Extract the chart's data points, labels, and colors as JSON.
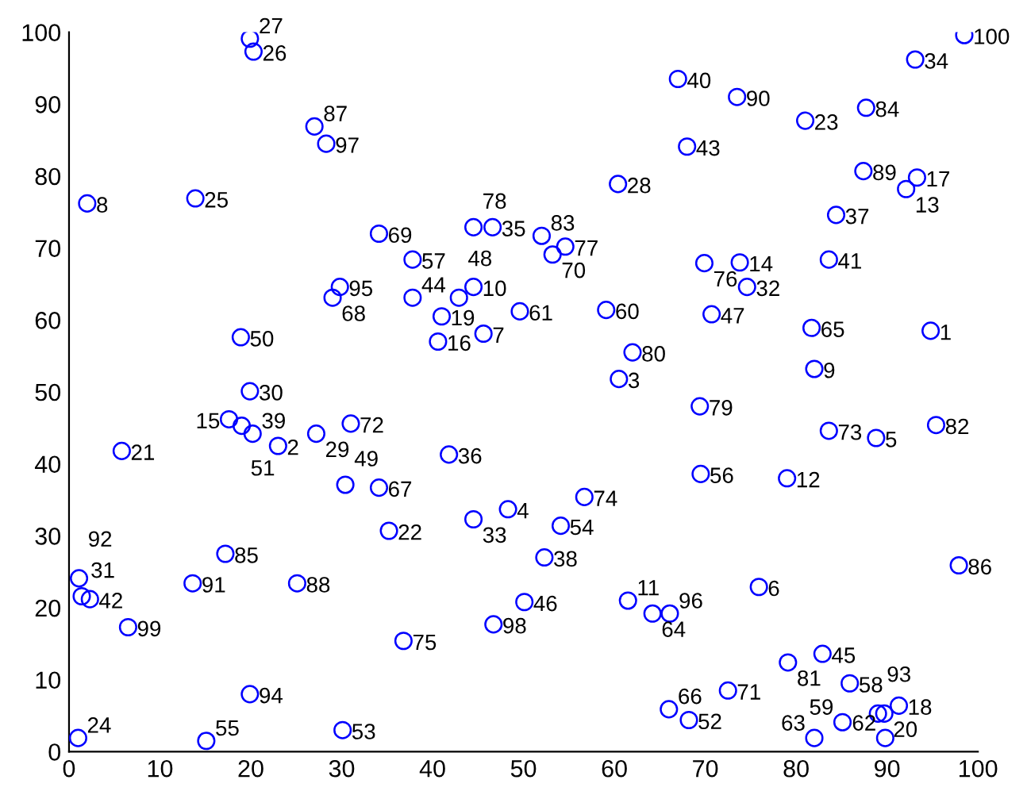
{
  "chart_data": {
    "type": "scatter",
    "marker": "circle",
    "grid": false,
    "legend": false,
    "xlim": [
      0,
      100
    ],
    "xticks": [
      0,
      10,
      20,
      30,
      40,
      50,
      60,
      70,
      80,
      90,
      100
    ],
    "ylim": [
      0,
      100
    ],
    "yticks": [
      0,
      10,
      20,
      30,
      40,
      50,
      60,
      70,
      80,
      90,
      100
    ],
    "series": [
      {
        "color": "#0000ff",
        "x": [
          94.8,
          23.0,
          60.5,
          48.3,
          88.8,
          75.9,
          45.6,
          2.0,
          82.0,
          44.5,
          61.5,
          79.0,
          92.1,
          73.8,
          17.6,
          40.6,
          93.3,
          91.3,
          41.0,
          89.7,
          5.8,
          35.2,
          81.0,
          1.0,
          13.9,
          20.3,
          19.9,
          60.4,
          27.2,
          19.9,
          1.4,
          74.6,
          44.5,
          93.1,
          46.6,
          41.8,
          84.4,
          52.3,
          20.2,
          67.0,
          83.6,
          2.3,
          68.0,
          37.8,
          82.9,
          50.1,
          70.7,
          42.9,
          30.4,
          18.9,
          19.0,
          68.2,
          30.1,
          54.1,
          15.1,
          69.5,
          37.8,
          85.9,
          85.1,
          59.1,
          49.6,
          89.8,
          82.0,
          64.2,
          81.7,
          66.0,
          34.1,
          29.0,
          34.1,
          53.2,
          72.5,
          31.0,
          83.6,
          56.7,
          36.8,
          69.9,
          54.6,
          44.5,
          69.4,
          62.0,
          79.1,
          95.4,
          52.0,
          87.7,
          17.2,
          97.9,
          27.0,
          25.1,
          87.4,
          73.5,
          13.6,
          1.1,
          89.0,
          19.9,
          29.8,
          66.1,
          28.3,
          46.7,
          6.5,
          98.5
        ],
        "values": [
          58.5,
          42.5,
          51.8,
          33.7,
          43.6,
          22.9,
          58.1,
          76.2,
          53.2,
          64.6,
          21.0,
          38.0,
          78.2,
          68.0,
          46.2,
          57.0,
          79.8,
          6.4,
          60.5,
          5.3,
          41.8,
          30.7,
          87.7,
          1.9,
          76.9,
          97.3,
          99.1,
          78.9,
          44.2,
          50.1,
          21.6,
          64.6,
          32.3,
          96.2,
          72.9,
          41.3,
          74.6,
          27.0,
          44.2,
          93.5,
          68.4,
          21.2,
          84.1,
          63.1,
          13.6,
          20.8,
          60.8,
          63.1,
          37.1,
          57.6,
          45.3,
          4.4,
          3.0,
          31.4,
          1.5,
          38.6,
          68.4,
          9.5,
          4.1,
          61.4,
          61.2,
          1.9,
          1.9,
          19.2,
          58.9,
          5.9,
          36.7,
          63.1,
          72.0,
          69.1,
          8.5,
          45.6,
          44.6,
          35.4,
          15.4,
          67.9,
          70.2,
          72.9,
          48.0,
          55.5,
          12.4,
          45.4,
          71.7,
          89.5,
          27.5,
          25.9,
          86.9,
          23.4,
          80.7,
          91.0,
          23.4,
          24.1,
          5.3,
          8.0,
          64.6,
          19.2,
          84.5,
          17.7,
          17.3,
          99.6
        ]
      }
    ],
    "annotations": [
      {
        "text": "1",
        "x": 94.8,
        "y": 58.5
      },
      {
        "text": "2",
        "x": 23.0,
        "y": 42.5
      },
      {
        "text": "3",
        "x": 60.5,
        "y": 51.8
      },
      {
        "text": "4",
        "x": 48.3,
        "y": 33.7
      },
      {
        "text": "5",
        "x": 88.8,
        "y": 43.6
      },
      {
        "text": "6",
        "x": 75.9,
        "y": 22.9
      },
      {
        "text": "7",
        "x": 45.6,
        "y": 58.1
      },
      {
        "text": "8",
        "x": 2.0,
        "y": 76.2
      },
      {
        "text": "9",
        "x": 82.0,
        "y": 53.2
      },
      {
        "text": "10",
        "x": 44.5,
        "y": 64.6
      },
      {
        "text": "11",
        "x": 61.5,
        "y": 21.0
      },
      {
        "text": "12",
        "x": 79.0,
        "y": 38.0
      },
      {
        "text": "13",
        "x": 92.1,
        "y": 78.2
      },
      {
        "text": "14",
        "x": 73.8,
        "y": 68.0
      },
      {
        "text": "15",
        "x": 17.6,
        "y": 46.2
      },
      {
        "text": "16",
        "x": 40.6,
        "y": 57.0
      },
      {
        "text": "17",
        "x": 93.3,
        "y": 79.8
      },
      {
        "text": "18",
        "x": 91.3,
        "y": 6.4
      },
      {
        "text": "19",
        "x": 41.0,
        "y": 60.5
      },
      {
        "text": "20",
        "x": 89.7,
        "y": 5.3
      },
      {
        "text": "21",
        "x": 5.8,
        "y": 41.8
      },
      {
        "text": "22",
        "x": 35.2,
        "y": 30.7
      },
      {
        "text": "23",
        "x": 81.0,
        "y": 87.7
      },
      {
        "text": "24",
        "x": 1.0,
        "y": 1.9
      },
      {
        "text": "25",
        "x": 13.9,
        "y": 76.9
      },
      {
        "text": "26",
        "x": 20.3,
        "y": 97.3
      },
      {
        "text": "27",
        "x": 19.9,
        "y": 99.1
      },
      {
        "text": "28",
        "x": 60.4,
        "y": 78.9
      },
      {
        "text": "29",
        "x": 27.2,
        "y": 44.2
      },
      {
        "text": "30",
        "x": 19.9,
        "y": 50.1
      },
      {
        "text": "31",
        "x": 1.4,
        "y": 21.6
      },
      {
        "text": "32",
        "x": 74.6,
        "y": 64.6
      },
      {
        "text": "33",
        "x": 44.5,
        "y": 32.3
      },
      {
        "text": "34",
        "x": 93.1,
        "y": 96.2
      },
      {
        "text": "35",
        "x": 46.6,
        "y": 72.9
      },
      {
        "text": "36",
        "x": 41.8,
        "y": 41.3
      },
      {
        "text": "37",
        "x": 84.4,
        "y": 74.6
      },
      {
        "text": "38",
        "x": 52.3,
        "y": 27.0
      },
      {
        "text": "39",
        "x": 20.2,
        "y": 44.2
      },
      {
        "text": "40",
        "x": 67.0,
        "y": 93.5
      },
      {
        "text": "41",
        "x": 83.6,
        "y": 68.4
      },
      {
        "text": "42",
        "x": 2.3,
        "y": 21.2
      },
      {
        "text": "43",
        "x": 68.0,
        "y": 84.1
      },
      {
        "text": "44",
        "x": 37.8,
        "y": 63.1
      },
      {
        "text": "45",
        "x": 82.9,
        "y": 13.6
      },
      {
        "text": "46",
        "x": 50.1,
        "y": 20.8
      },
      {
        "text": "47",
        "x": 70.7,
        "y": 60.8
      },
      {
        "text": "48",
        "x": 42.9,
        "y": 63.1
      },
      {
        "text": "49",
        "x": 30.4,
        "y": 37.1
      },
      {
        "text": "50",
        "x": 18.9,
        "y": 57.6
      },
      {
        "text": "51",
        "x": 19.0,
        "y": 45.3
      },
      {
        "text": "52",
        "x": 68.2,
        "y": 4.4
      },
      {
        "text": "53",
        "x": 30.1,
        "y": 3.0
      },
      {
        "text": "54",
        "x": 54.1,
        "y": 31.4
      },
      {
        "text": "55",
        "x": 15.1,
        "y": 1.5
      },
      {
        "text": "56",
        "x": 69.5,
        "y": 38.6
      },
      {
        "text": "57",
        "x": 37.8,
        "y": 68.4
      },
      {
        "text": "58",
        "x": 85.9,
        "y": 9.5
      },
      {
        "text": "59",
        "x": 85.1,
        "y": 4.1
      },
      {
        "text": "60",
        "x": 59.1,
        "y": 61.4
      },
      {
        "text": "61",
        "x": 49.6,
        "y": 61.2
      },
      {
        "text": "62",
        "x": 89.8,
        "y": 1.9
      },
      {
        "text": "63",
        "x": 82.0,
        "y": 1.9
      },
      {
        "text": "64",
        "x": 64.2,
        "y": 19.2
      },
      {
        "text": "65",
        "x": 81.7,
        "y": 58.9
      },
      {
        "text": "66",
        "x": 66.0,
        "y": 5.9
      },
      {
        "text": "67",
        "x": 34.1,
        "y": 36.7
      },
      {
        "text": "68",
        "x": 29.0,
        "y": 63.1
      },
      {
        "text": "69",
        "x": 34.1,
        "y": 72.0
      },
      {
        "text": "70",
        "x": 53.2,
        "y": 69.1
      },
      {
        "text": "71",
        "x": 72.5,
        "y": 8.5
      },
      {
        "text": "72",
        "x": 31.0,
        "y": 45.6
      },
      {
        "text": "73",
        "x": 83.6,
        "y": 44.6
      },
      {
        "text": "74",
        "x": 56.7,
        "y": 35.4
      },
      {
        "text": "75",
        "x": 36.8,
        "y": 15.4
      },
      {
        "text": "76",
        "x": 69.9,
        "y": 67.9
      },
      {
        "text": "77",
        "x": 54.6,
        "y": 70.2
      },
      {
        "text": "78",
        "x": 44.5,
        "y": 72.9
      },
      {
        "text": "79",
        "x": 69.4,
        "y": 48.0
      },
      {
        "text": "80",
        "x": 62.0,
        "y": 55.5
      },
      {
        "text": "81",
        "x": 79.1,
        "y": 12.4
      },
      {
        "text": "82",
        "x": 95.4,
        "y": 45.4
      },
      {
        "text": "83",
        "x": 52.0,
        "y": 71.7
      },
      {
        "text": "84",
        "x": 87.7,
        "y": 89.5
      },
      {
        "text": "85",
        "x": 17.2,
        "y": 27.5
      },
      {
        "text": "86",
        "x": 97.9,
        "y": 25.9
      },
      {
        "text": "87",
        "x": 27.0,
        "y": 86.9
      },
      {
        "text": "88",
        "x": 25.1,
        "y": 23.4
      },
      {
        "text": "89",
        "x": 87.4,
        "y": 80.7
      },
      {
        "text": "90",
        "x": 73.5,
        "y": 91.0
      },
      {
        "text": "91",
        "x": 13.6,
        "y": 23.4
      },
      {
        "text": "92",
        "x": 1.1,
        "y": 24.1
      },
      {
        "text": "93",
        "x": 89.0,
        "y": 5.3
      },
      {
        "text": "94",
        "x": 19.9,
        "y": 8.0
      },
      {
        "text": "95",
        "x": 29.8,
        "y": 64.6
      },
      {
        "text": "96",
        "x": 66.1,
        "y": 19.2
      },
      {
        "text": "97",
        "x": 28.3,
        "y": 84.5
      },
      {
        "text": "98",
        "x": 46.7,
        "y": 17.7
      },
      {
        "text": "99",
        "x": 6.5,
        "y": 17.3
      },
      {
        "text": "100",
        "x": 98.5,
        "y": 99.6
      }
    ]
  }
}
